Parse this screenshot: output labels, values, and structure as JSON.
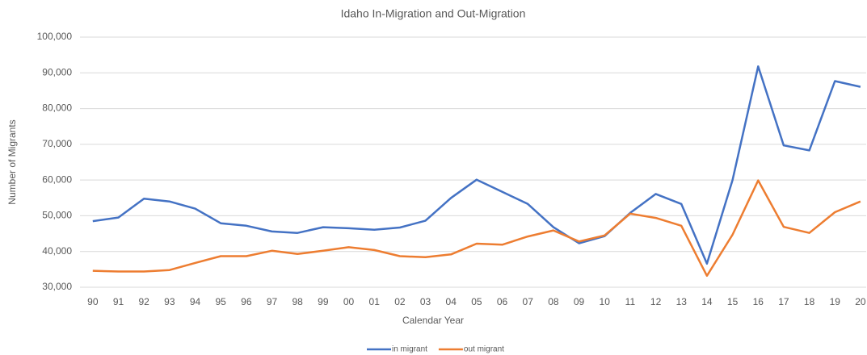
{
  "chart_data": {
    "type": "line",
    "title": "Idaho In-Migration and Out-Migration",
    "x_label": "Calendar Year",
    "y_label": "Number of Migrants",
    "categories": [
      "90",
      "91",
      "92",
      "93",
      "94",
      "95",
      "96",
      "97",
      "98",
      "99",
      "00",
      "01",
      "02",
      "03",
      "04",
      "05",
      "06",
      "07",
      "08",
      "09",
      "10",
      "11",
      "12",
      "13",
      "14",
      "15",
      "16",
      "17",
      "18",
      "19",
      "20"
    ],
    "series": [
      {
        "name": "in migrant",
        "color": "#4472c4",
        "values": [
          48500,
          49500,
          54800,
          54000,
          52000,
          47900,
          47200,
          45600,
          45200,
          46800,
          46500,
          46100,
          46700,
          48600,
          55000,
          60100,
          56700,
          53300,
          46800,
          42300,
          44300,
          50800,
          56100,
          53300,
          36600,
          60000,
          91800,
          69700,
          68300,
          87700,
          86100
        ]
      },
      {
        "name": "out migrant",
        "color": "#ed7d31",
        "values": [
          34600,
          34400,
          34400,
          34800,
          36800,
          38700,
          38700,
          40200,
          39300,
          40200,
          41200,
          40400,
          38700,
          38400,
          39200,
          42200,
          41900,
          44200,
          45900,
          42800,
          44500,
          50600,
          49400,
          47200,
          33200,
          44700,
          59900,
          46900,
          45200,
          51000,
          54000
        ]
      }
    ],
    "ylim": [
      30000,
      100000
    ],
    "yticks": [
      {
        "value": 30000,
        "label": "30,000"
      },
      {
        "value": 40000,
        "label": "40,000"
      },
      {
        "value": 50000,
        "label": "50,000"
      },
      {
        "value": 60000,
        "label": "60,000"
      },
      {
        "value": 70000,
        "label": "70,000"
      },
      {
        "value": 80000,
        "label": "80,000"
      },
      {
        "value": 90000,
        "label": "90,000"
      },
      {
        "value": 100000,
        "label": "100,000"
      }
    ],
    "grid": true,
    "legend": "bottom"
  }
}
